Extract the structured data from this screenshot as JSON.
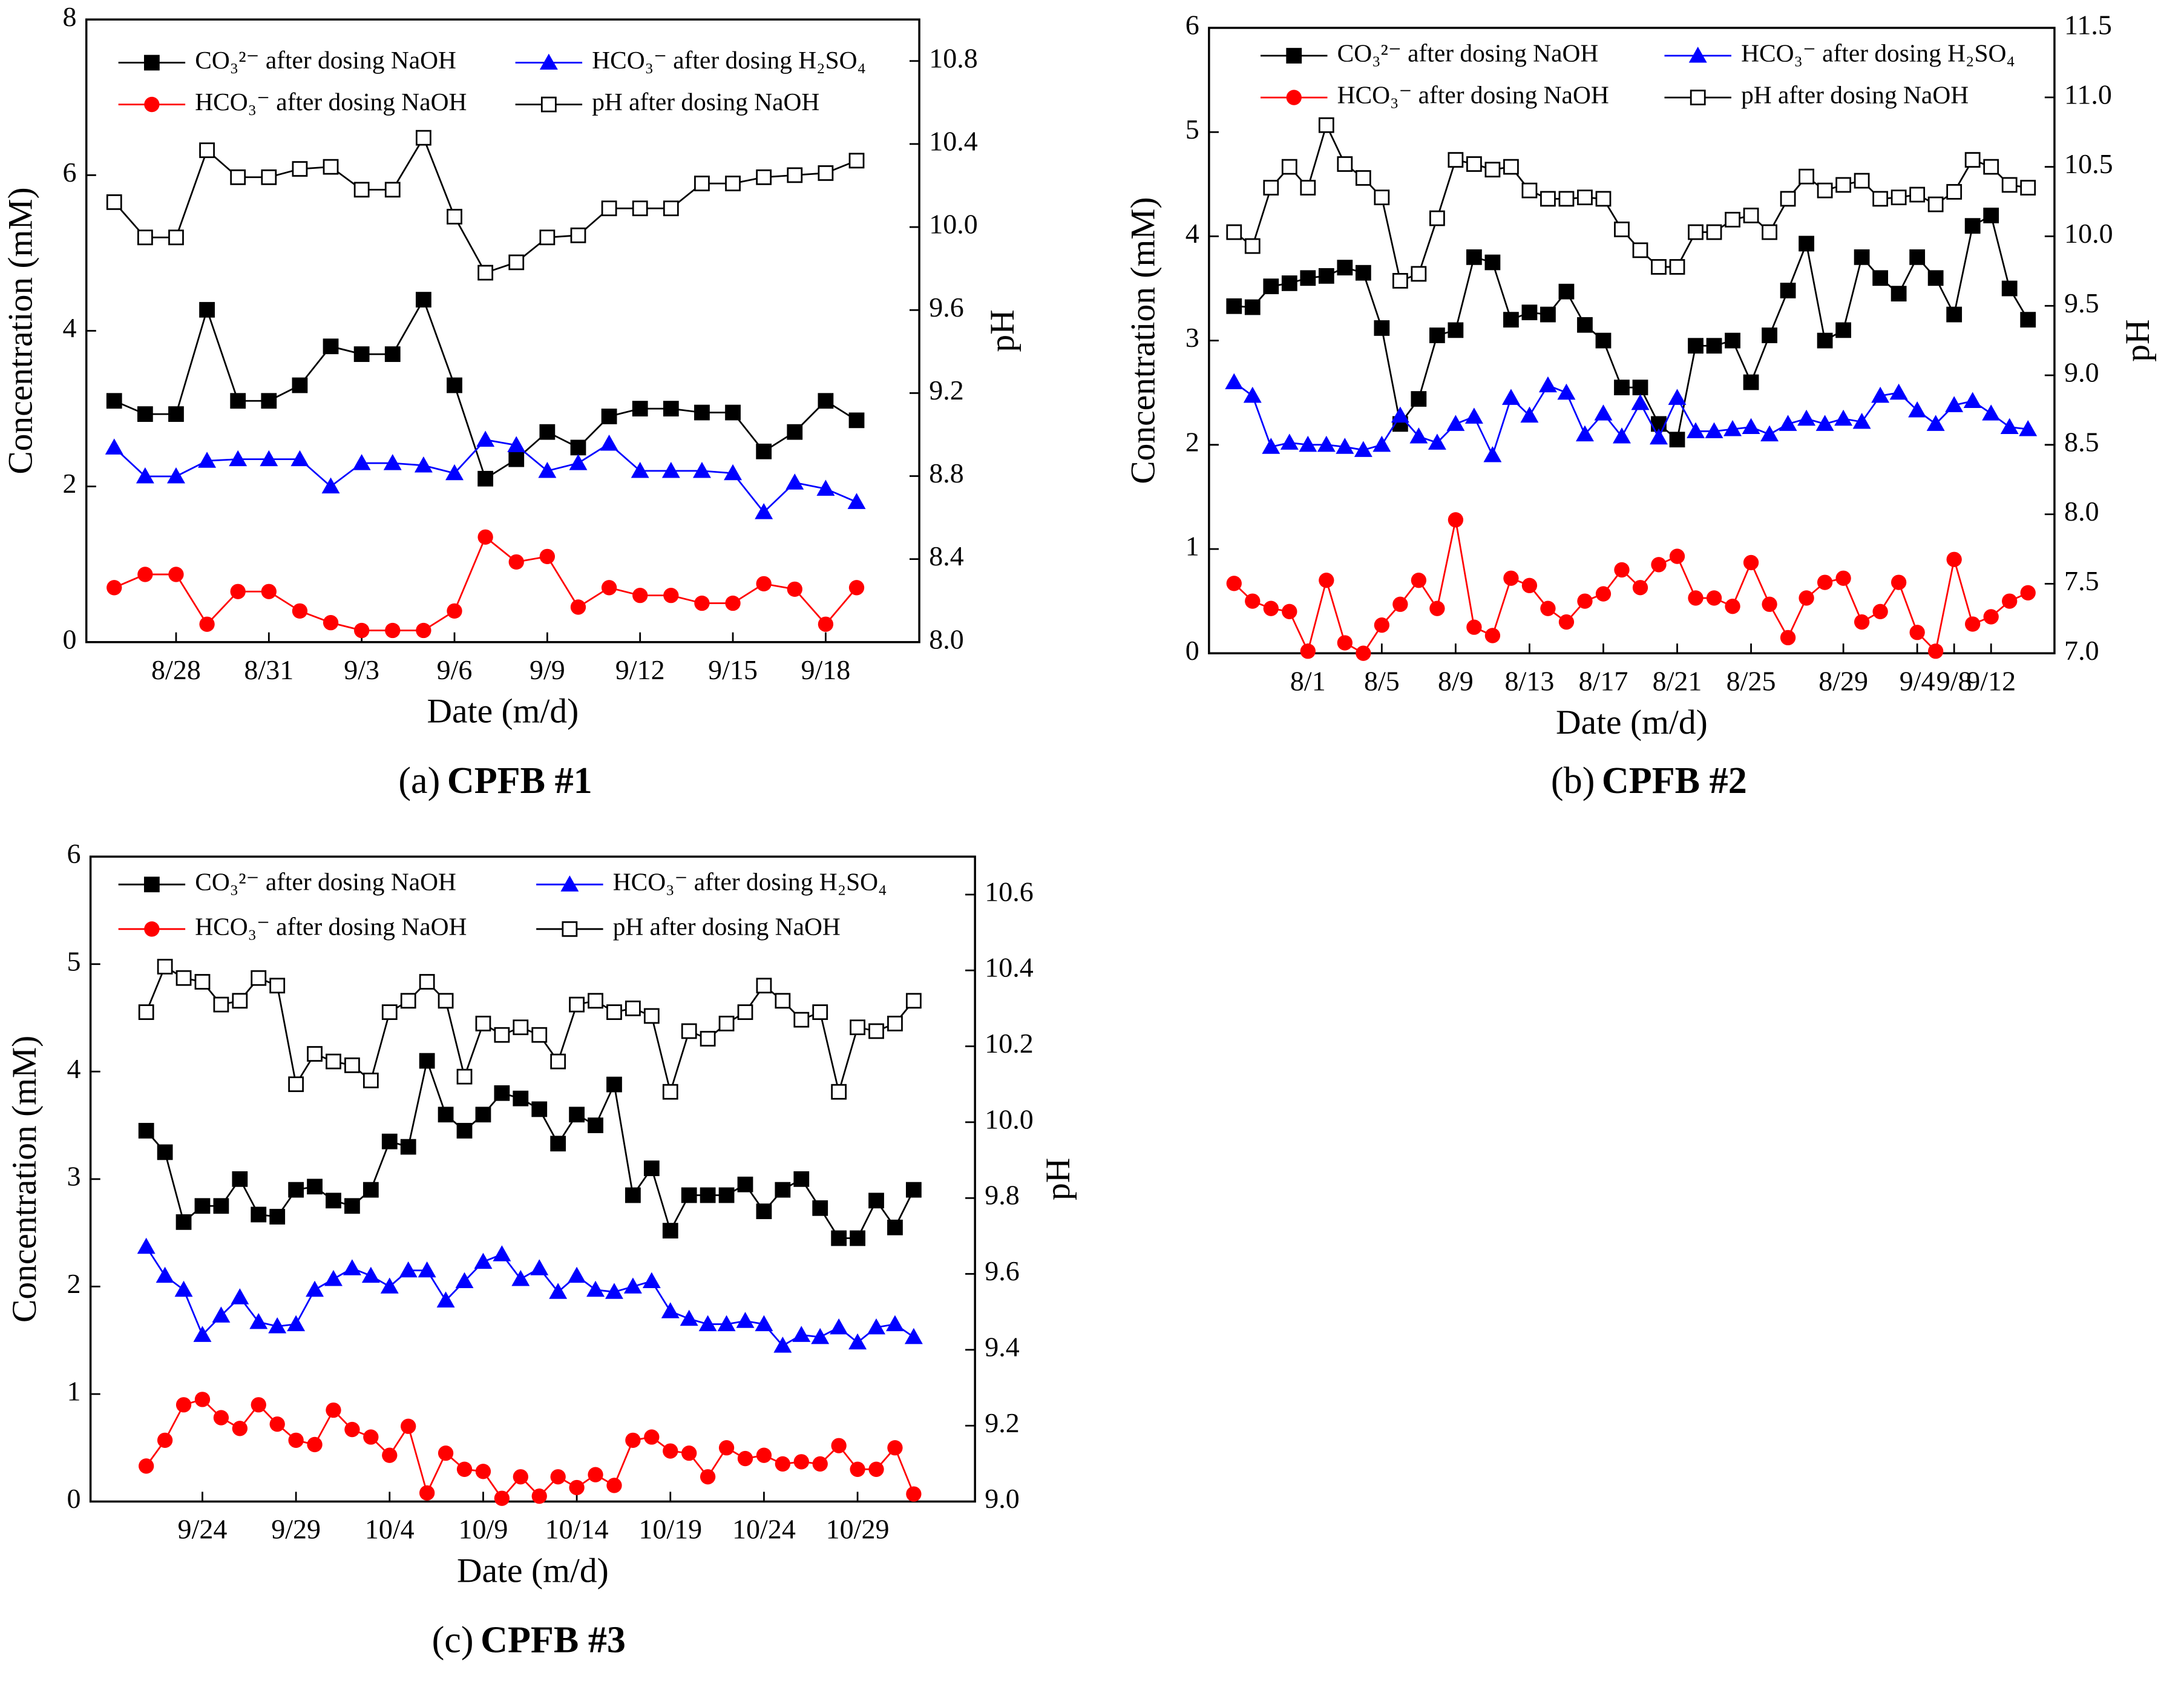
{
  "chart_data": [
    {
      "type": "line",
      "y_label": "Concentration (mM)",
      "y2_label": "pH",
      "x_label": "Date (m/d)",
      "caption_label": "(a)",
      "caption": "CPFB #1",
      "categories": [
        null,
        null,
        "8/28",
        null,
        null,
        "8/31",
        null,
        null,
        "9/3",
        null,
        null,
        "9/6",
        null,
        null,
        "9/9",
        null,
        null,
        "9/12",
        null,
        null,
        "9/15",
        null,
        null,
        "9/18",
        null
      ],
      "ylim": [
        0,
        8
      ],
      "yticks": [
        0,
        2,
        4,
        6,
        8
      ],
      "y2lim": [
        8,
        11
      ],
      "y2ticks": [
        {
          "value": 8,
          "label": "8.0"
        },
        8.4,
        8.8,
        9.2,
        9.6,
        {
          "value": 10,
          "label": "10.0"
        },
        10.4,
        10.8
      ],
      "series": [
        {
          "name": "CO₃²⁻ after dosing NaOH",
          "color": "#000000",
          "marker": "square",
          "values": [
            3.1,
            2.93,
            2.93,
            4.27,
            3.1,
            3.1,
            3.3,
            3.8,
            3.7,
            3.7,
            4.4,
            3.3,
            2.1,
            2.35,
            2.7,
            2.5,
            2.9,
            3.0,
            3.0,
            2.95,
            2.95,
            2.45,
            2.7,
            3.1,
            2.85
          ]
        },
        {
          "name": "HCO₃⁻ after dosing H₂SO₄",
          "color": "#0000ff",
          "marker": "triangle",
          "values": [
            2.5,
            2.13,
            2.13,
            2.33,
            2.35,
            2.35,
            2.35,
            2.0,
            2.3,
            2.3,
            2.27,
            2.17,
            2.6,
            2.53,
            2.2,
            2.3,
            2.55,
            2.2,
            2.2,
            2.2,
            2.17,
            1.67,
            2.05,
            1.97,
            1.8
          ]
        },
        {
          "name": "HCO₃⁻ after dosing NaOH",
          "color": "#ff0000",
          "marker": "circle",
          "values": [
            0.7,
            0.87,
            0.87,
            0.23,
            0.65,
            0.65,
            0.4,
            0.25,
            0.15,
            0.15,
            0.15,
            0.4,
            1.35,
            1.03,
            1.1,
            0.45,
            0.7,
            0.6,
            0.6,
            0.5,
            0.5,
            0.75,
            0.68,
            0.23,
            0.7
          ]
        },
        {
          "name": "pH after dosing NaOH",
          "color": "#000000",
          "marker": "open-square",
          "axis": "y2",
          "values": [
            10.12,
            9.95,
            9.95,
            10.37,
            10.24,
            10.24,
            10.28,
            10.29,
            10.18,
            10.18,
            10.43,
            10.05,
            9.78,
            9.83,
            9.95,
            9.96,
            10.09,
            10.09,
            10.09,
            10.21,
            10.21,
            10.24,
            10.25,
            10.26,
            10.32
          ]
        }
      ]
    },
    {
      "type": "line",
      "y_label": "Concentration (mM)",
      "y2_label": "pH",
      "x_label": "Date (m/d)",
      "caption_label": "(b)",
      "caption": "CPFB #2",
      "categories": [
        null,
        null,
        null,
        null,
        "8/1",
        null,
        null,
        null,
        "8/5",
        null,
        null,
        null,
        "8/9",
        null,
        null,
        null,
        "8/13",
        null,
        null,
        null,
        "8/17",
        null,
        null,
        null,
        "8/21",
        null,
        null,
        null,
        "8/25",
        null,
        null,
        null,
        null,
        "8/29",
        null,
        null,
        null,
        "9/4",
        null,
        "9/8",
        null,
        "9/12",
        null,
        null
      ],
      "ylim": [
        0,
        6
      ],
      "yticks": [
        0,
        1,
        2,
        3,
        4,
        5,
        6
      ],
      "y2lim": [
        7,
        11.5
      ],
      "y2ticks": [
        {
          "value": 7,
          "label": "7.0"
        },
        7.5,
        {
          "value": 8,
          "label": "8.0"
        },
        8.5,
        {
          "value": 9,
          "label": "9.0"
        },
        9.5,
        {
          "value": 10,
          "label": "10.0"
        },
        10.5,
        {
          "value": 11,
          "label": "11.0"
        },
        11.5
      ],
      "series": [
        {
          "name": "CO₃²⁻ after dosing NaOH",
          "color": "#000000",
          "marker": "square",
          "values": [
            3.33,
            3.32,
            3.52,
            3.55,
            3.6,
            3.62,
            3.7,
            3.65,
            3.12,
            2.2,
            2.44,
            3.05,
            3.1,
            3.8,
            3.75,
            3.2,
            3.27,
            3.25,
            3.47,
            3.15,
            3.0,
            2.55,
            2.55,
            2.2,
            2.05,
            2.95,
            2.95,
            3.0,
            2.6,
            3.05,
            3.48,
            3.93,
            3.0,
            3.1,
            3.8,
            3.6,
            3.45,
            3.8,
            3.6,
            3.25,
            4.1,
            4.2,
            3.5,
            3.2
          ]
        },
        {
          "name": "HCO₃⁻ after dosing H₂SO₄",
          "color": "#0000ff",
          "marker": "triangle",
          "values": [
            2.6,
            2.47,
            1.98,
            2.02,
            2.0,
            2.0,
            1.98,
            1.95,
            2.0,
            2.28,
            2.08,
            2.02,
            2.2,
            2.27,
            1.9,
            2.45,
            2.28,
            2.57,
            2.5,
            2.1,
            2.3,
            2.08,
            2.4,
            2.07,
            2.45,
            2.13,
            2.13,
            2.15,
            2.17,
            2.1,
            2.2,
            2.25,
            2.2,
            2.25,
            2.22,
            2.47,
            2.5,
            2.33,
            2.2,
            2.38,
            2.42,
            2.3,
            2.17,
            2.15
          ]
        },
        {
          "name": "HCO₃⁻ after dosing NaOH",
          "color": "#ff0000",
          "marker": "circle",
          "values": [
            0.67,
            0.5,
            0.43,
            0.4,
            0.02,
            0.7,
            0.1,
            0.0,
            0.27,
            0.47,
            0.7,
            0.43,
            1.28,
            0.25,
            0.17,
            0.72,
            0.65,
            0.43,
            0.3,
            0.5,
            0.57,
            0.8,
            0.63,
            0.85,
            0.93,
            0.53,
            0.53,
            0.45,
            0.87,
            0.47,
            0.15,
            0.53,
            0.68,
            0.72,
            0.3,
            0.4,
            0.68,
            0.2,
            0.02,
            0.9,
            0.28,
            0.35,
            0.5,
            0.58
          ]
        },
        {
          "name": "pH after dosing NaOH",
          "color": "#000000",
          "marker": "open-square",
          "axis": "y2",
          "values": [
            10.03,
            9.93,
            10.35,
            10.5,
            10.35,
            10.8,
            10.52,
            10.42,
            10.28,
            9.68,
            9.73,
            10.13,
            10.55,
            10.52,
            10.48,
            10.5,
            10.33,
            10.27,
            10.27,
            10.28,
            10.27,
            10.05,
            9.9,
            9.78,
            9.78,
            10.03,
            10.03,
            10.12,
            10.15,
            10.03,
            10.27,
            10.43,
            10.33,
            10.37,
            10.4,
            10.27,
            10.28,
            10.3,
            10.23,
            10.32,
            10.55,
            10.5,
            10.37,
            10.35
          ]
        }
      ]
    },
    {
      "type": "line",
      "y_label": "Concentration (mM)",
      "y2_label": "pH",
      "x_label": "Date (m/d)",
      "caption_label": "(c)",
      "caption": "CPFB #3",
      "categories": [
        null,
        null,
        null,
        "9/24",
        null,
        null,
        null,
        null,
        "9/29",
        null,
        null,
        null,
        null,
        "10/4",
        null,
        null,
        null,
        null,
        "10/9",
        null,
        null,
        null,
        null,
        "10/14",
        null,
        null,
        null,
        null,
        "10/19",
        null,
        null,
        null,
        null,
        "10/24",
        null,
        null,
        null,
        null,
        "10/29",
        null,
        null,
        null
      ],
      "ylim": [
        0,
        6
      ],
      "yticks": [
        0,
        1,
        2,
        3,
        4,
        5,
        6
      ],
      "y2lim": [
        9,
        10.7
      ],
      "y2ticks": [
        {
          "value": 9,
          "label": "9.0"
        },
        9.2,
        9.4,
        9.6,
        9.8,
        {
          "value": 10,
          "label": "10.0"
        },
        10.2,
        10.4,
        10.6
      ],
      "series": [
        {
          "name": "CO₃²⁻ after dosing NaOH",
          "color": "#000000",
          "marker": "square",
          "values": [
            3.45,
            3.25,
            2.6,
            2.75,
            2.75,
            3.0,
            2.67,
            2.65,
            2.9,
            2.93,
            2.8,
            2.75,
            2.9,
            3.35,
            3.3,
            4.1,
            3.6,
            3.45,
            3.6,
            3.8,
            3.75,
            3.65,
            3.33,
            3.6,
            3.5,
            3.88,
            2.85,
            3.1,
            2.52,
            2.85,
            2.85,
            2.85,
            2.95,
            2.7,
            2.9,
            3.0,
            2.73,
            2.45,
            2.45,
            2.8,
            2.55,
            2.9
          ]
        },
        {
          "name": "HCO₃⁻ after dosing H₂SO₄",
          "color": "#0000ff",
          "marker": "triangle",
          "values": [
            2.37,
            2.1,
            1.97,
            1.55,
            1.73,
            1.9,
            1.67,
            1.63,
            1.65,
            1.97,
            2.07,
            2.17,
            2.1,
            2.0,
            2.15,
            2.15,
            1.87,
            2.05,
            2.23,
            2.3,
            2.07,
            2.17,
            1.95,
            2.1,
            1.97,
            1.95,
            2.0,
            2.05,
            1.77,
            1.7,
            1.65,
            1.65,
            1.68,
            1.65,
            1.45,
            1.55,
            1.53,
            1.62,
            1.48,
            1.62,
            1.65,
            1.53
          ]
        },
        {
          "name": "HCO₃⁻ after dosing NaOH",
          "color": "#ff0000",
          "marker": "circle",
          "values": [
            0.33,
            0.57,
            0.9,
            0.95,
            0.78,
            0.68,
            0.9,
            0.72,
            0.57,
            0.53,
            0.85,
            0.67,
            0.6,
            0.43,
            0.7,
            0.08,
            0.45,
            0.3,
            0.28,
            0.03,
            0.23,
            0.05,
            0.23,
            0.13,
            0.25,
            0.15,
            0.57,
            0.6,
            0.47,
            0.45,
            0.23,
            0.5,
            0.4,
            0.43,
            0.35,
            0.37,
            0.35,
            0.52,
            0.3,
            0.3,
            0.5,
            0.07
          ]
        },
        {
          "name": "pH after dosing NaOH",
          "color": "#000000",
          "marker": "open-square",
          "axis": "y2",
          "values": [
            10.29,
            10.41,
            10.38,
            10.37,
            10.31,
            10.32,
            10.38,
            10.36,
            10.1,
            10.18,
            10.16,
            10.15,
            10.11,
            10.29,
            10.32,
            10.37,
            10.32,
            10.12,
            10.26,
            10.23,
            10.25,
            10.23,
            10.16,
            10.31,
            10.32,
            10.29,
            10.3,
            10.28,
            10.08,
            10.24,
            10.22,
            10.26,
            10.29,
            10.36,
            10.32,
            10.27,
            10.29,
            10.08,
            10.25,
            10.24,
            10.26,
            10.32
          ]
        }
      ]
    }
  ]
}
